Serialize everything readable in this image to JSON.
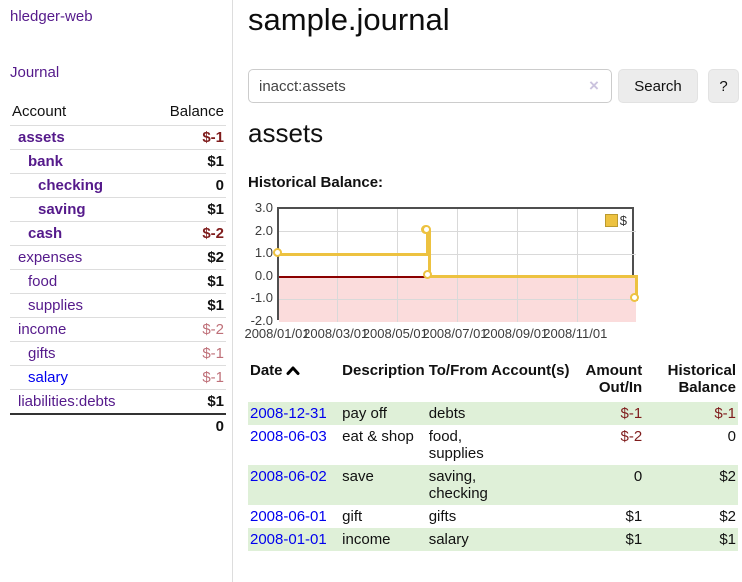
{
  "app": {
    "title": "hledger-web",
    "nav_journal": "Journal"
  },
  "sidebar": {
    "columns": {
      "account": "Account",
      "balance": "Balance"
    },
    "accounts": [
      {
        "name": "assets",
        "balance": "$-1",
        "indent": 0,
        "bold": true,
        "link": "purple"
      },
      {
        "name": "bank",
        "balance": "$1",
        "indent": 1,
        "bold": true,
        "link": "purple"
      },
      {
        "name": "checking",
        "balance": "0",
        "indent": 2,
        "bold": true,
        "link": "purple"
      },
      {
        "name": "saving",
        "balance": "$1",
        "indent": 2,
        "bold": true,
        "link": "purple"
      },
      {
        "name": "cash",
        "balance": "$-2",
        "indent": 1,
        "bold": true,
        "link": "purple"
      },
      {
        "name": "expenses",
        "balance": "$2",
        "indent": 0,
        "bold": false,
        "link": "purple"
      },
      {
        "name": "food",
        "balance": "$1",
        "indent": 1,
        "bold": false,
        "link": "purple"
      },
      {
        "name": "supplies",
        "balance": "$1",
        "indent": 1,
        "bold": false,
        "link": "purple"
      },
      {
        "name": "income",
        "balance": "$-2",
        "indent": 0,
        "bold": false,
        "link": "purple"
      },
      {
        "name": "gifts",
        "balance": "$-1",
        "indent": 1,
        "bold": false,
        "link": "purple"
      },
      {
        "name": "salary",
        "balance": "$-1",
        "indent": 1,
        "bold": false,
        "link": "blue"
      },
      {
        "name": "liabilities:debts",
        "balance": "$1",
        "indent": 0,
        "bold": false,
        "link": "purple"
      }
    ],
    "total": "0"
  },
  "header": {
    "title": "sample.journal"
  },
  "search": {
    "value": "inacct:assets",
    "clear_icon": "×",
    "button_label": "Search",
    "help_label": "?"
  },
  "account_page": {
    "heading": "assets",
    "chart_heading": "Historical Balance:"
  },
  "chart_data": {
    "type": "line",
    "step": true,
    "title": "Historical Balance",
    "legend": "$",
    "legend_position": "top-right",
    "series": [
      {
        "name": "$",
        "color": "#edc240",
        "points": [
          {
            "x": "2008-01-01",
            "y": 1
          },
          {
            "x": "2008-06-01",
            "y": 2
          },
          {
            "x": "2008-06-02",
            "y": 2
          },
          {
            "x": "2008-06-03",
            "y": 0
          },
          {
            "x": "2008-12-31",
            "y": -1
          }
        ]
      }
    ],
    "x_range": [
      "2008-01-01",
      "2008-12-31"
    ],
    "ylim": [
      -2,
      3
    ],
    "y_ticks": [
      3,
      2,
      1,
      0,
      -1,
      -2
    ],
    "y_tick_labels": [
      "3.0",
      "2.0",
      "1.0",
      "0.0",
      "-1.0",
      "-2.0"
    ],
    "x_ticks": [
      "2008-01-01",
      "2008-03-01",
      "2008-05-01",
      "2008-07-01",
      "2008-09-01",
      "2008-11-01"
    ],
    "x_tick_labels": [
      "2008/01/01",
      "2008/03/01",
      "2008/05/01",
      "2008/07/01",
      "2008/09/01",
      "2008/11/01"
    ],
    "grid": true,
    "negative_region_color": "#fbdcdc",
    "zero_line_color": "#8b0000"
  },
  "register": {
    "headers": {
      "date": "Date",
      "description": "Description",
      "tofrom": "To/From Account(s)",
      "amount": "Amount Out/In",
      "balance": "Historical Balance"
    },
    "sort": "ascending",
    "rows": [
      {
        "date": "2008-12-31",
        "description": "pay off",
        "tofrom": "debts",
        "amount": "$-1",
        "balance": "$-1"
      },
      {
        "date": "2008-06-03",
        "description": "eat & shop",
        "tofrom": "food, supplies",
        "amount": "$-2",
        "balance": "0"
      },
      {
        "date": "2008-06-02",
        "description": "save",
        "tofrom": "saving, checking",
        "amount": "0",
        "balance": "$2"
      },
      {
        "date": "2008-06-01",
        "description": "gift",
        "tofrom": "gifts",
        "amount": "$1",
        "balance": "$2"
      },
      {
        "date": "2008-01-01",
        "description": "income",
        "tofrom": "salary",
        "amount": "$1",
        "balance": "$1"
      }
    ]
  }
}
